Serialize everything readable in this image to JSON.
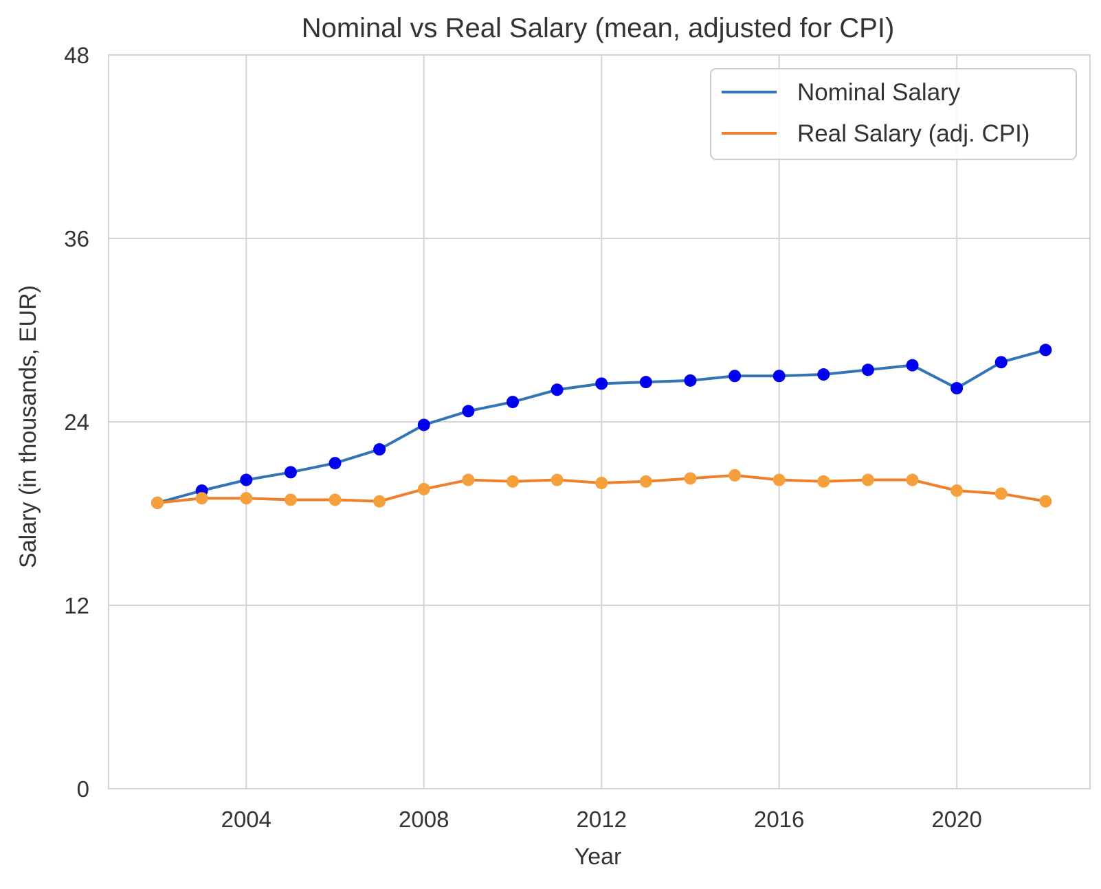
{
  "chart_data": {
    "type": "line",
    "title": "Nominal vs Real Salary (mean, adjusted for CPI)",
    "xlabel": "Year",
    "ylabel": "Salary (in thousands, EUR)",
    "xlim": [
      2000.9,
      2023.0
    ],
    "ylim": [
      0,
      48
    ],
    "xticks": [
      2004,
      2008,
      2012,
      2016,
      2020
    ],
    "yticks": [
      0,
      12,
      24,
      36,
      48
    ],
    "grid": true,
    "legend_position": "top-right",
    "x": [
      2002,
      2003,
      2004,
      2005,
      2006,
      2007,
      2008,
      2009,
      2010,
      2011,
      2012,
      2013,
      2014,
      2015,
      2016,
      2017,
      2018,
      2019,
      2020,
      2021,
      2022
    ],
    "series": [
      {
        "name": "Nominal Salary",
        "line_color": "#3274b5",
        "marker_color": "#0000ee",
        "values": [
          18.7,
          19.5,
          20.2,
          20.7,
          21.3,
          22.2,
          23.8,
          24.7,
          25.3,
          26.1,
          26.5,
          26.6,
          26.7,
          27.0,
          27.0,
          27.1,
          27.4,
          27.7,
          26.2,
          27.9,
          28.7
        ]
      },
      {
        "name": "Real Salary (adj. CPI)",
        "line_color": "#ef7f2b",
        "marker_color": "#f5a03a",
        "values": [
          18.7,
          19.0,
          19.0,
          18.9,
          18.9,
          18.8,
          19.6,
          20.2,
          20.1,
          20.2,
          20.0,
          20.1,
          20.3,
          20.5,
          20.2,
          20.1,
          20.2,
          20.2,
          19.5,
          19.3,
          18.8
        ]
      }
    ]
  }
}
